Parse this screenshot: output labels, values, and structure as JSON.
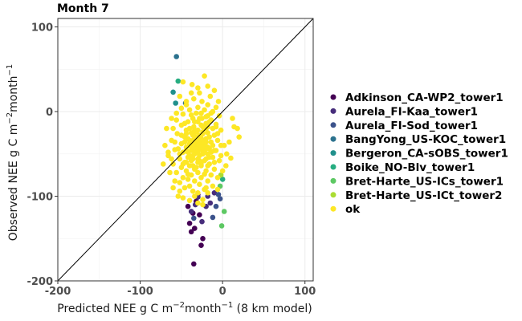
{
  "chart_data": {
    "type": "scatter",
    "title": "Month 7",
    "xlabel": {
      "pre": "Predicted NEE g C m",
      "sup1": "−2",
      "mid": "month",
      "sup2": "−1",
      "post": " (8 km model)"
    },
    "ylabel": {
      "pre": "Observed NEE g C m",
      "sup1": "−2",
      "mid": "month",
      "sup2": "−1"
    },
    "xlim": [
      -200,
      110
    ],
    "ylim": [
      -200,
      110
    ],
    "x_ticks": [
      -200,
      -100,
      0,
      100
    ],
    "y_ticks": [
      -200,
      -100,
      0,
      100
    ],
    "x_tick_labels": [
      "-200",
      "-100",
      "0",
      "100"
    ],
    "y_tick_labels": [
      "-200",
      "-100",
      "0",
      "100"
    ],
    "grid": true,
    "reference_line": "1:1",
    "legend_position": "right",
    "series": [
      {
        "name": "Adkinson_CA-WP2_tower1",
        "color": "#440154",
        "points": [
          [
            -35,
            -180
          ],
          [
            -26,
            -158
          ],
          [
            -40,
            -132
          ],
          [
            -38,
            -142
          ],
          [
            -32,
            -106
          ],
          [
            -30,
            -98
          ],
          [
            -36,
            -120
          ],
          [
            -28,
            -122
          ],
          [
            -34,
            -138
          ],
          [
            -42,
            -112
          ],
          [
            -24,
            -150
          ]
        ]
      },
      {
        "name": "Aurela_FI-Kaa_tower1",
        "color": "#472D7B",
        "points": [
          [
            -30,
            -101
          ],
          [
            -20,
            -112
          ],
          [
            -15,
            -108
          ],
          [
            -10,
            -96
          ],
          [
            -38,
            -118
          ],
          [
            -25,
            -130
          ],
          [
            -18,
            -100
          ],
          [
            -33,
            -110
          ]
        ]
      },
      {
        "name": "Aurela_FI-Sod_tower1",
        "color": "#3B528B",
        "points": [
          [
            -12,
            -125
          ],
          [
            -5,
            -98
          ],
          [
            -3,
            -103
          ],
          [
            -8,
            -112
          ],
          [
            -35,
            -126
          ]
        ]
      },
      {
        "name": "BangYong_US-KOC_tower1",
        "color": "#2C728E",
        "points": [
          [
            -56,
            65
          ],
          [
            -45,
            10
          ]
        ]
      },
      {
        "name": "Bergeron_CA-sOBS_tower1",
        "color": "#21908C",
        "points": [
          [
            -60,
            23
          ],
          [
            -57,
            10
          ]
        ]
      },
      {
        "name": "Boike_NO-Blv_tower1",
        "color": "#27AD81",
        "points": [
          [
            -54,
            36
          ],
          [
            0,
            -80
          ]
        ]
      },
      {
        "name": "Bret-Harte_US-ICs_tower1",
        "color": "#5DC863",
        "points": [
          [
            -1,
            -135
          ],
          [
            2,
            -118
          ],
          [
            -3,
            -88
          ]
        ]
      },
      {
        "name": "Bret-Harte_US-ICt_tower2",
        "color": "#AADC32",
        "points": [
          [
            -2,
            -75
          ]
        ]
      },
      {
        "name": "ok",
        "color": "#FDE725",
        "points": [
          [
            -22,
            42
          ],
          [
            -48,
            35
          ],
          [
            -37,
            32
          ],
          [
            -10,
            25
          ],
          [
            -28,
            22
          ],
          [
            -52,
            18
          ],
          [
            -15,
            18
          ],
          [
            -35,
            15
          ],
          [
            -25,
            12
          ],
          [
            -5,
            12
          ],
          [
            -44,
            8
          ],
          [
            -18,
            8
          ],
          [
            -30,
            5
          ],
          [
            -8,
            5
          ],
          [
            -40,
            2
          ],
          [
            -22,
            2
          ],
          [
            -12,
            0
          ],
          [
            -32,
            -2
          ],
          [
            -48,
            -3
          ],
          [
            -18,
            -5
          ],
          [
            -4,
            -5
          ],
          [
            -36,
            -8
          ],
          [
            -25,
            -8
          ],
          [
            -56,
            -10
          ],
          [
            -14,
            -10
          ],
          [
            -42,
            -12
          ],
          [
            -30,
            -12
          ],
          [
            -20,
            -14
          ],
          [
            -8,
            -15
          ],
          [
            -50,
            -16
          ],
          [
            -35,
            -18
          ],
          [
            -24,
            -18
          ],
          [
            -60,
            -20
          ],
          [
            -12,
            -20
          ],
          [
            -44,
            -22
          ],
          [
            -30,
            -22
          ],
          [
            -2,
            -22
          ],
          [
            -38,
            -25
          ],
          [
            -18,
            -25
          ],
          [
            -55,
            -26
          ],
          [
            -26,
            -28
          ],
          [
            -10,
            -28
          ],
          [
            -46,
            -30
          ],
          [
            -33,
            -30
          ],
          [
            -20,
            -32
          ],
          [
            -62,
            -34
          ],
          [
            -40,
            -34
          ],
          [
            -6,
            -34
          ],
          [
            -28,
            -36
          ],
          [
            -14,
            -36
          ],
          [
            -50,
            -38
          ],
          [
            -36,
            -38
          ],
          [
            -22,
            -40
          ],
          [
            -2,
            -40
          ],
          [
            -44,
            -42
          ],
          [
            -30,
            -42
          ],
          [
            -16,
            -44
          ],
          [
            -58,
            -45
          ],
          [
            -38,
            -46
          ],
          [
            -24,
            -46
          ],
          [
            -8,
            -46
          ],
          [
            -48,
            -48
          ],
          [
            -34,
            -50
          ],
          [
            -18,
            -50
          ],
          [
            -66,
            -52
          ],
          [
            -28,
            -52
          ],
          [
            -42,
            -54
          ],
          [
            -12,
            -54
          ],
          [
            -52,
            -56
          ],
          [
            -36,
            -56
          ],
          [
            -22,
            -58
          ],
          [
            -4,
            -58
          ],
          [
            -46,
            -60
          ],
          [
            -30,
            -60
          ],
          [
            -60,
            -62
          ],
          [
            -16,
            -62
          ],
          [
            -40,
            -64
          ],
          [
            -26,
            -64
          ],
          [
            -50,
            -66
          ],
          [
            -34,
            -68
          ],
          [
            -10,
            -68
          ],
          [
            -44,
            -70
          ],
          [
            -20,
            -70
          ],
          [
            -56,
            -72
          ],
          [
            -30,
            -72
          ],
          [
            -38,
            -75
          ],
          [
            -14,
            -75
          ],
          [
            -48,
            -78
          ],
          [
            -26,
            -78
          ],
          [
            -6,
            -78
          ],
          [
            -42,
            -80
          ],
          [
            -34,
            -82
          ],
          [
            -18,
            -82
          ],
          [
            -52,
            -84
          ],
          [
            -28,
            -86
          ],
          [
            -40,
            -88
          ],
          [
            -12,
            -88
          ],
          [
            -46,
            -90
          ],
          [
            -22,
            -92
          ],
          [
            -36,
            -94
          ],
          [
            -30,
            -96
          ],
          [
            -44,
            -60
          ],
          [
            -20,
            -36
          ],
          [
            -32,
            -24
          ],
          [
            -26,
            -16
          ],
          [
            -38,
            -4
          ],
          [
            -16,
            -30
          ],
          [
            -24,
            -50
          ],
          [
            -42,
            -32
          ],
          [
            -54,
            -44
          ],
          [
            -10,
            -60
          ],
          [
            -34,
            -40
          ],
          [
            -28,
            -8
          ],
          [
            -20,
            -20
          ],
          [
            -46,
            -14
          ],
          [
            -14,
            -48
          ],
          [
            -6,
            -26
          ],
          [
            -32,
            -66
          ],
          [
            -40,
            -20
          ],
          [
            -22,
            -74
          ],
          [
            -50,
            -28
          ],
          [
            -36,
            -52
          ],
          [
            -18,
            -64
          ],
          [
            -26,
            -2
          ],
          [
            -58,
            -36
          ],
          [
            -44,
            -46
          ],
          [
            -30,
            -30
          ],
          [
            -12,
            -40
          ],
          [
            -24,
            -34
          ],
          [
            -38,
            -58
          ],
          [
            -48,
            -62
          ],
          [
            -16,
            -12
          ],
          [
            -34,
            -12
          ],
          [
            -8,
            -18
          ],
          [
            -42,
            -74
          ],
          [
            -28,
            -44
          ],
          [
            -20,
            -56
          ],
          [
            -36,
            -28
          ],
          [
            -52,
            -50
          ],
          [
            -24,
            -26
          ],
          [
            -30,
            -48
          ],
          [
            -40,
            -38
          ],
          [
            -18,
            -42
          ],
          [
            -26,
            -62
          ],
          [
            -32,
            -34
          ],
          [
            -14,
            -2
          ],
          [
            -46,
            -36
          ],
          [
            -22,
            -48
          ],
          [
            -38,
            -42
          ],
          [
            -28,
            -28
          ],
          [
            -20,
            -6
          ],
          [
            -36,
            -64
          ],
          [
            -44,
            -26
          ],
          [
            -10,
            -46
          ],
          [
            -30,
            -56
          ],
          [
            -24,
            -40
          ],
          [
            -16,
            -54
          ],
          [
            -34,
            -22
          ],
          [
            -42,
            -48
          ],
          [
            -26,
            -32
          ],
          [
            -18,
            -18
          ],
          [
            -32,
            -44
          ],
          [
            -40,
            -52
          ],
          [
            -22,
            -36
          ],
          [
            -28,
            -58
          ],
          [
            -36,
            -34
          ],
          [
            -20,
            -44
          ],
          [
            -30,
            -38
          ],
          [
            -24,
            -24
          ],
          [
            -34,
            -46
          ],
          [
            -26,
            -42
          ],
          [
            -70,
            -40
          ],
          [
            -72,
            -62
          ],
          [
            -66,
            -48
          ],
          [
            -62,
            -56
          ],
          [
            14,
            -18
          ],
          [
            18,
            -20
          ],
          [
            20,
            -30
          ],
          [
            12,
            -8
          ],
          [
            8,
            -36
          ],
          [
            5,
            -50
          ],
          [
            10,
            -55
          ],
          [
            4,
            -64
          ],
          [
            -62,
            -8
          ],
          [
            -68,
            -20
          ],
          [
            -64,
            -72
          ],
          [
            -58,
            -82
          ],
          [
            -52,
            -94
          ],
          [
            -48,
            -102
          ],
          [
            -40,
            -105
          ],
          [
            -30,
            -108
          ],
          [
            -24,
            -104
          ],
          [
            -18,
            -96
          ],
          [
            -6,
            -92
          ],
          [
            0,
            -70
          ],
          [
            -2,
            -52
          ],
          [
            2,
            -40
          ],
          [
            -60,
            -90
          ],
          [
            -54,
            -100
          ],
          [
            -44,
            12
          ],
          [
            -50,
            4
          ],
          [
            -56,
            -2
          ],
          [
            -18,
            30
          ],
          [
            -30,
            28
          ],
          [
            -38,
            22
          ],
          [
            -24,
            -110
          ],
          [
            -34,
            -100
          ],
          [
            -20,
            -90
          ]
        ]
      }
    ]
  }
}
